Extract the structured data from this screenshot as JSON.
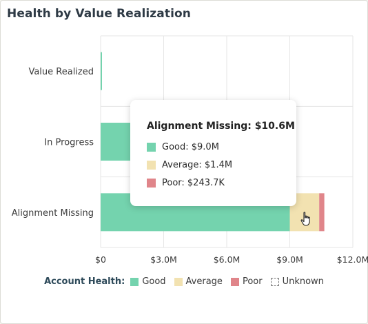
{
  "chart_data": {
    "type": "bar",
    "orientation": "horizontal",
    "stacked": true,
    "title": "Health by Value Realization",
    "categories": [
      "Value Realized",
      "In Progress",
      "Alignment Missing"
    ],
    "series": [
      {
        "name": "Good",
        "color": "#74d3ae",
        "values": [
          0.06,
          4.2,
          9.0
        ]
      },
      {
        "name": "Average",
        "color": "#f2e2b1",
        "values": [
          0,
          0,
          1.4
        ]
      },
      {
        "name": "Poor",
        "color": "#e0858a",
        "values": [
          0,
          0,
          0.2437
        ]
      },
      {
        "name": "Unknown",
        "color": "#ffffff",
        "values": [
          0,
          0,
          0
        ]
      }
    ],
    "xlim": [
      0,
      12
    ],
    "x_ticks": [
      0,
      3,
      6,
      9,
      12
    ],
    "x_tick_labels": [
      "$0",
      "$3.0M",
      "$6.0M",
      "$9.0M",
      "$12.0M"
    ],
    "grid": true,
    "legend_title": "Account Health:",
    "legend_position": "bottom"
  },
  "tooltip": {
    "title": "Alignment Missing: $10.6M",
    "rows": [
      {
        "label": "Good: $9.0M",
        "color": "#74d3ae"
      },
      {
        "label": "Average: $1.4M",
        "color": "#f2e2b1"
      },
      {
        "label": "Poor: $243.7K",
        "color": "#e0858a"
      }
    ]
  },
  "cursor": "hand-pointer-icon"
}
